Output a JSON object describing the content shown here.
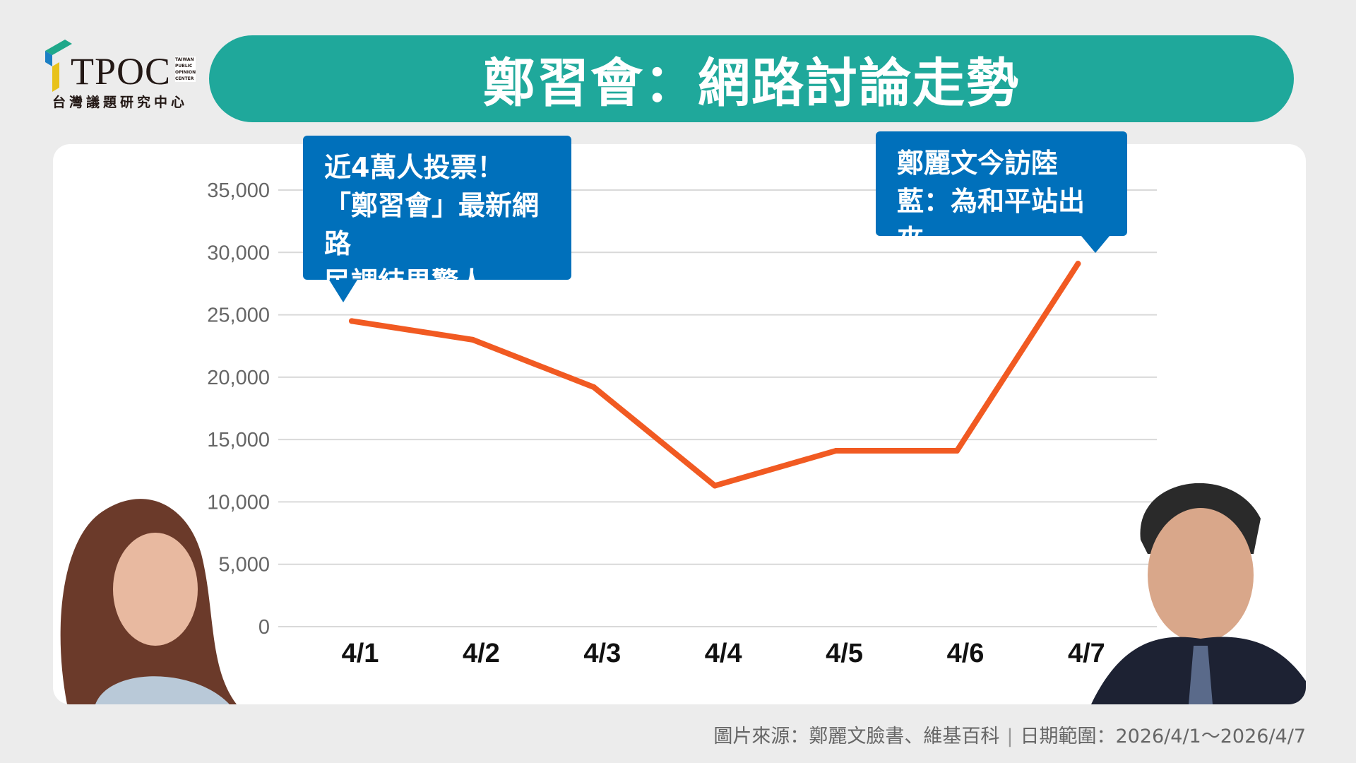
{
  "logo": {
    "name": "TPOC",
    "subtitle": "台灣議題研究中心",
    "english": [
      "TAIWAN",
      "PUBLIC",
      "OPINION",
      "CENTER"
    ]
  },
  "header": {
    "title": "鄭習會：網路討論走勢"
  },
  "colors": {
    "header": "#1fa89b",
    "callout": "#0070bb",
    "line": "#f15a22",
    "background": "#ececec"
  },
  "callouts": [
    {
      "lines": [
        "近4萬人投票！",
        "「鄭習會」最新網路",
        "民調結果驚人"
      ],
      "points_to": "4/1"
    },
    {
      "lines": [
        "鄭麗文今訪陸",
        "藍：為和平站出來"
      ],
      "points_to": "4/7"
    }
  ],
  "footer": {
    "source": "圖片來源：鄭麗文臉書、維基百科",
    "date_range": "日期範圍：2026/4/1～2026/4/7"
  },
  "chart_data": {
    "type": "line",
    "categories": [
      "4/1",
      "4/2",
      "4/3",
      "4/4",
      "4/5",
      "4/6",
      "4/7"
    ],
    "values": [
      24500,
      23000,
      19200,
      11300,
      14100,
      14100,
      29100
    ],
    "ylim": [
      0,
      35000
    ],
    "yticks": [
      0,
      5000,
      10000,
      15000,
      20000,
      25000,
      30000,
      35000
    ],
    "ytick_labels": [
      "0",
      "5,000",
      "10,000",
      "15,000",
      "20,000",
      "25,000",
      "30,000",
      "35,000"
    ],
    "grid": true,
    "title": "",
    "xlabel": "",
    "ylabel": ""
  }
}
